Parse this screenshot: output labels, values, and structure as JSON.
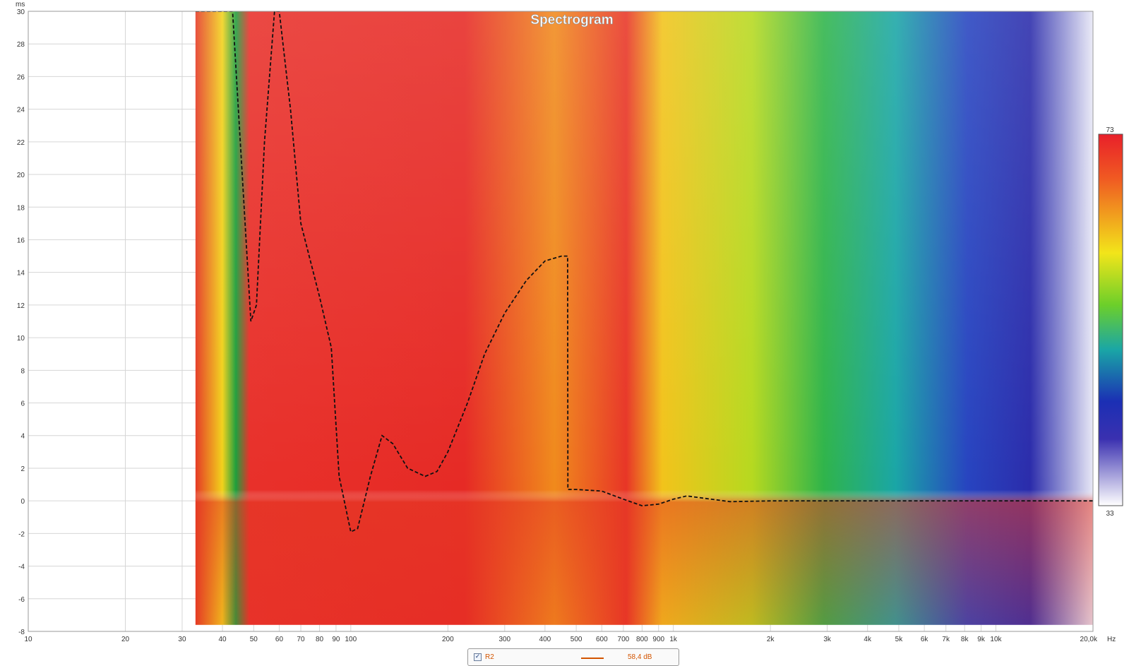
{
  "chart_data": {
    "type": "heatmap",
    "title": "Spectrogram",
    "x_unit": "Hz",
    "y_unit": "ms",
    "x_scale": "log",
    "xlim": [
      10,
      20000
    ],
    "ylim": [
      -8,
      30
    ],
    "grid": true,
    "x_ticks": [
      {
        "v": 10,
        "label": "10"
      },
      {
        "v": 20,
        "label": "20"
      },
      {
        "v": 30,
        "label": "30"
      },
      {
        "v": 40,
        "label": "40"
      },
      {
        "v": 50,
        "label": "50"
      },
      {
        "v": 60,
        "label": "60"
      },
      {
        "v": 70,
        "label": "70"
      },
      {
        "v": 80,
        "label": "80"
      },
      {
        "v": 90,
        "label": "90"
      },
      {
        "v": 100,
        "label": "100"
      },
      {
        "v": 200,
        "label": "200"
      },
      {
        "v": 300,
        "label": "300"
      },
      {
        "v": 400,
        "label": "400"
      },
      {
        "v": 500,
        "label": "500"
      },
      {
        "v": 600,
        "label": "600"
      },
      {
        "v": 700,
        "label": "700"
      },
      {
        "v": 800,
        "label": "800"
      },
      {
        "v": 900,
        "label": "900"
      },
      {
        "v": 1000,
        "label": "1k"
      },
      {
        "v": 2000,
        "label": "2k"
      },
      {
        "v": 3000,
        "label": "3k"
      },
      {
        "v": 4000,
        "label": "4k"
      },
      {
        "v": 5000,
        "label": "5k"
      },
      {
        "v": 6000,
        "label": "6k"
      },
      {
        "v": 7000,
        "label": "7k"
      },
      {
        "v": 8000,
        "label": "8k"
      },
      {
        "v": 9000,
        "label": "9k"
      },
      {
        "v": 10000,
        "label": "10k"
      },
      {
        "v": 20000,
        "label": "20,0k"
      }
    ],
    "y_ticks": [
      {
        "v": 30,
        "label": "30"
      },
      {
        "v": 28,
        "label": "28"
      },
      {
        "v": 26,
        "label": "26"
      },
      {
        "v": 24,
        "label": "24"
      },
      {
        "v": 22,
        "label": "22"
      },
      {
        "v": 20,
        "label": "20"
      },
      {
        "v": 18,
        "label": "18"
      },
      {
        "v": 16,
        "label": "16"
      },
      {
        "v": 14,
        "label": "14"
      },
      {
        "v": 12,
        "label": "12"
      },
      {
        "v": 10,
        "label": "10"
      },
      {
        "v": 8,
        "label": "8"
      },
      {
        "v": 6,
        "label": "6"
      },
      {
        "v": 4,
        "label": "4"
      },
      {
        "v": 2,
        "label": "2"
      },
      {
        "v": 0,
        "label": "0"
      },
      {
        "v": -2,
        "label": "-2"
      },
      {
        "v": -4,
        "label": "-4"
      },
      {
        "v": -6,
        "label": "-6"
      },
      {
        "v": -8,
        "label": "-8"
      }
    ],
    "colorbar": {
      "max_label": "73",
      "min_label": "33",
      "colors": [
        "#e8202a",
        "#f57a1e",
        "#f2e51a",
        "#22a83c",
        "#1aa6a6",
        "#1b2fb4",
        "#2a1aa0",
        "#ffffff"
      ]
    },
    "data_start_freq": 33,
    "data_bottom_ms": -7.6,
    "peak_energy_series": {
      "style": "dashed",
      "color": "#111111",
      "freq": [
        33,
        43,
        49,
        51,
        54,
        58,
        60,
        65,
        70,
        80,
        87,
        92,
        100,
        105,
        115,
        125,
        135,
        150,
        170,
        185,
        200,
        230,
        260,
        300,
        350,
        400,
        450,
        470,
        471,
        500,
        600,
        700,
        800,
        900,
        1000,
        1100,
        1200,
        1500,
        2000,
        5000,
        10000,
        20000
      ],
      "ms": [
        30,
        30,
        11,
        12,
        22,
        30,
        30,
        24,
        17,
        12.5,
        9.4,
        1.5,
        -1.9,
        -1.7,
        1.5,
        4.0,
        3.5,
        2.0,
        1.5,
        1.8,
        3.0,
        6.0,
        9.0,
        11.5,
        13.5,
        14.7,
        15.0,
        15.0,
        0.7,
        0.7,
        0.6,
        0.1,
        -0.3,
        -0.2,
        0.1,
        0.3,
        0.2,
        -0.05,
        0.0,
        0.0,
        0.0,
        0.0
      ]
    }
  },
  "legend": {
    "checked_glyph": "✓",
    "series_name": "R2",
    "series_value": "58,4 dB",
    "series_color": "#d35400"
  }
}
